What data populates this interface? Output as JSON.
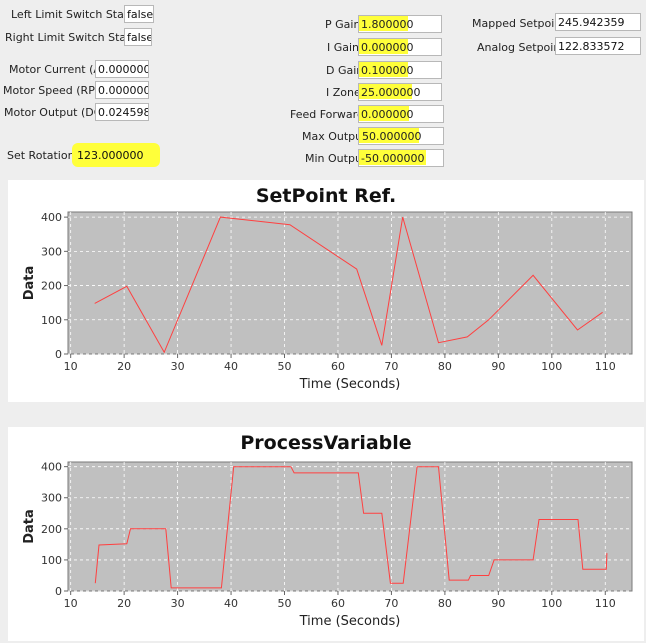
{
  "left_limit": {
    "label": "Left Limit Switch Status",
    "value": "false"
  },
  "right_limit": {
    "label": "Right Limit Switch Status",
    "value": "false"
  },
  "motor_current": {
    "label": "Motor Current (A)",
    "value": "0.000000"
  },
  "motor_speed": {
    "label": "Motor Speed (RPM)",
    "value": "0.000000"
  },
  "motor_output": {
    "label": "Motor Output (DC)",
    "value": "0.024598"
  },
  "set_rotations": {
    "label": "Set Rotations",
    "value": "123.000000"
  },
  "p_gain": {
    "label": "P Gain",
    "value": "1.800000"
  },
  "i_gain": {
    "label": "I Gain",
    "value": "0.000000"
  },
  "d_gain": {
    "label": "D Gain",
    "value": "0.100000"
  },
  "i_zone": {
    "label": "I Zone",
    "value": "25.000000"
  },
  "feed_forward": {
    "label": "Feed Forward",
    "value": "0.000000"
  },
  "max_output": {
    "label": "Max Output",
    "value": "50.000000"
  },
  "min_output": {
    "label": "Min Output",
    "value": "-50.000000"
  },
  "mapped_setpoint": {
    "label": "Mapped Setpoint",
    "value": "245.942359"
  },
  "analog_setpoint": {
    "label": "Analog Setpoint",
    "value": "122.833572"
  },
  "colors": {
    "highlight": "#ffff3a",
    "line": "#ff4040",
    "plot_bg": "#c0c0c0"
  },
  "chart_data": [
    {
      "type": "line",
      "title": "SetPoint Ref.",
      "xlabel": "Time (Seconds)",
      "ylabel": "Data",
      "xlim": [
        9.5,
        115
      ],
      "ylim": [
        0,
        415
      ],
      "xticks": [
        10,
        20,
        30,
        40,
        50,
        60,
        70,
        80,
        90,
        100,
        110
      ],
      "yticks": [
        0,
        100,
        200,
        300,
        400
      ],
      "grid": true,
      "step": false,
      "x": [
        14.5,
        20.5,
        27.5,
        38,
        51,
        63.5,
        68.2,
        72.1,
        78.8,
        84.2,
        88.2,
        96.5,
        104.8,
        109.5
      ],
      "y": [
        148,
        198,
        5,
        400,
        378,
        248,
        25,
        400,
        33,
        50,
        100,
        230,
        70,
        122
      ]
    },
    {
      "type": "line",
      "title": "ProcessVariable",
      "xlabel": "Time (Seconds)",
      "ylabel": "Data",
      "xlim": [
        9.5,
        115
      ],
      "ylim": [
        0,
        415
      ],
      "xticks": [
        10,
        20,
        30,
        40,
        50,
        60,
        70,
        80,
        90,
        100,
        110
      ],
      "yticks": [
        0,
        100,
        200,
        300,
        400
      ],
      "grid": true,
      "step": false,
      "x": [
        14.6,
        15.3,
        20.5,
        21.2,
        27.8,
        28.8,
        38.2,
        40.5,
        51.2,
        51.8,
        63.8,
        64.8,
        68.2,
        69.8,
        72.2,
        74.8,
        78.8,
        80.8,
        84.4,
        84.8,
        88.2,
        89.2,
        96.5,
        97.6,
        104.9,
        105.8,
        109.5,
        110.2,
        110.3
      ],
      "y": [
        25,
        148,
        152,
        200,
        200,
        10,
        10,
        400,
        400,
        380,
        380,
        250,
        250,
        25,
        25,
        400,
        400,
        35,
        35,
        50,
        50,
        100,
        100,
        230,
        230,
        70,
        70,
        70,
        122
      ]
    }
  ]
}
